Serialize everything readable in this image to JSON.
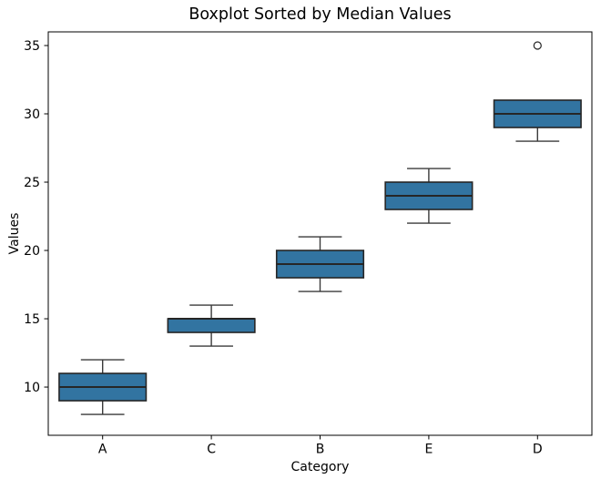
{
  "figure": {
    "title": "Boxplot Sorted by Median Values",
    "xlabel": "Category",
    "ylabel": "Values"
  },
  "chart_data": {
    "type": "boxplot",
    "title": "Boxplot Sorted by Median Values",
    "xlabel": "Category",
    "ylabel": "Values",
    "categories": [
      "A",
      "C",
      "B",
      "E",
      "D"
    ],
    "series": [
      {
        "category": "A",
        "whisker_low": 8,
        "q1": 9,
        "median": 10,
        "q3": 11,
        "whisker_high": 12,
        "outliers": []
      },
      {
        "category": "C",
        "whisker_low": 13,
        "q1": 14,
        "median": 15,
        "q3": 15,
        "whisker_high": 16,
        "outliers": []
      },
      {
        "category": "B",
        "whisker_low": 17,
        "q1": 18,
        "median": 19,
        "q3": 20,
        "whisker_high": 21,
        "outliers": []
      },
      {
        "category": "E",
        "whisker_low": 22,
        "q1": 23,
        "median": 24,
        "q3": 25,
        "whisker_high": 26,
        "outliers": []
      },
      {
        "category": "D",
        "whisker_low": 28,
        "q1": 29,
        "median": 30,
        "q3": 31,
        "whisker_high": 31,
        "outliers": [
          35
        ]
      }
    ],
    "yticks": [
      10,
      15,
      20,
      25,
      30,
      35
    ],
    "ylim": [
      6.47,
      36.0
    ],
    "grid": false,
    "legend": null,
    "colors": {
      "box_fill": "#3274a1",
      "box_edge": "#262626",
      "median_line": "#262626",
      "whisker": "#3a3a3a",
      "outlier_edge": "#262626",
      "spine": "#000000",
      "tick": "#000000",
      "text": "#000000",
      "background": "#ffffff"
    }
  }
}
